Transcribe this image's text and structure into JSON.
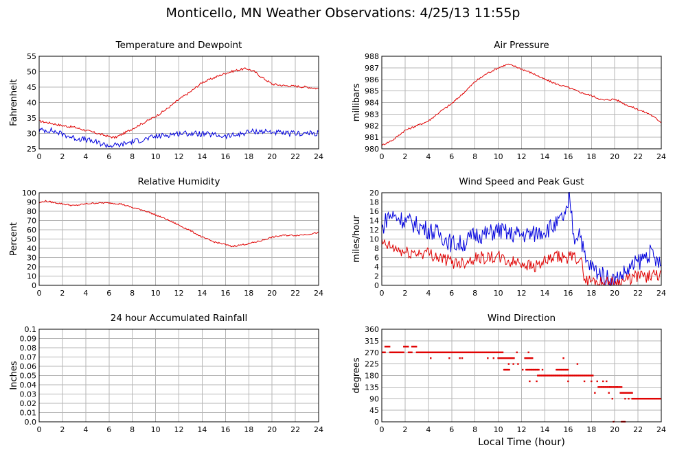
{
  "page": {
    "title": "Monticello, MN Weather Observations: 4/25/13 11:55p"
  },
  "colors": {
    "red": "#e00000",
    "blue": "#0000dd"
  },
  "chart_data": [
    {
      "id": "temp",
      "type": "line",
      "title": "Temperature and Dewpoint",
      "xlabel": "",
      "ylabel": "Fahrenheit",
      "xlim": [
        0,
        24
      ],
      "ylim": [
        25,
        55
      ],
      "xticks": [
        0,
        2,
        4,
        6,
        8,
        10,
        12,
        14,
        16,
        18,
        20,
        22,
        24
      ],
      "yticks": [
        25,
        30,
        35,
        40,
        45,
        50,
        55
      ],
      "series": [
        {
          "color": "red",
          "x": [
            0,
            1,
            2,
            3,
            4,
            5,
            6,
            6.5,
            7,
            8,
            9,
            10,
            11,
            12,
            13,
            14,
            15,
            16,
            17,
            17.8,
            18.5,
            19,
            20,
            21,
            22,
            23,
            24
          ],
          "y": [
            34,
            33.3,
            32.5,
            32,
            31,
            30,
            29,
            28.6,
            29.5,
            31.5,
            33.5,
            35.5,
            38,
            41,
            43.5,
            46.5,
            48,
            49.5,
            50.5,
            51,
            50,
            48.5,
            46,
            45.5,
            45.3,
            45,
            44.5
          ],
          "noise": 0.35
        },
        {
          "color": "blue",
          "x": [
            0,
            1,
            2,
            3,
            4,
            5,
            6,
            7,
            8,
            9,
            10,
            11,
            12,
            13,
            14,
            15,
            16,
            17,
            18,
            19,
            20,
            21,
            22,
            23,
            24
          ],
          "y": [
            31,
            31,
            29.8,
            28.5,
            28,
            27,
            26,
            26.3,
            27.4,
            28,
            29,
            29.5,
            30,
            30,
            29.8,
            29.5,
            29,
            29.5,
            30.5,
            30.7,
            30.5,
            29.9,
            30,
            30,
            30
          ],
          "noise": 0.9
        }
      ]
    },
    {
      "id": "press",
      "type": "line",
      "title": "Air Pressure",
      "xlabel": "",
      "ylabel": "millibars",
      "xlim": [
        0,
        24
      ],
      "ylim": [
        980,
        988
      ],
      "xticks": [
        0,
        2,
        4,
        6,
        8,
        10,
        12,
        14,
        16,
        18,
        20,
        22,
        24
      ],
      "yticks": [
        980,
        981,
        982,
        983,
        984,
        985,
        986,
        987,
        988
      ],
      "series": [
        {
          "color": "red",
          "x": [
            0,
            1,
            2,
            3,
            4,
            5,
            6,
            7,
            8,
            9,
            10,
            10.8,
            11.5,
            12,
            13,
            14,
            15,
            16,
            17,
            18,
            19,
            20,
            21,
            22,
            23,
            24
          ],
          "y": [
            980.3,
            980.8,
            981.6,
            982,
            982.4,
            983.2,
            983.9,
            984.8,
            985.8,
            986.5,
            987,
            987.3,
            987.1,
            986.9,
            986.5,
            986,
            985.6,
            985.3,
            984.9,
            984.6,
            984.2,
            984.3,
            983.8,
            983.4,
            983,
            982.3
          ],
          "noise": 0.08
        }
      ]
    },
    {
      "id": "rh",
      "type": "line",
      "title": "Relative Humidity",
      "xlabel": "",
      "ylabel": "Percent",
      "xlim": [
        0,
        24
      ],
      "ylim": [
        0,
        100
      ],
      "xticks": [
        0,
        2,
        4,
        6,
        8,
        10,
        12,
        14,
        16,
        18,
        20,
        22,
        24
      ],
      "yticks": [
        0,
        10,
        20,
        30,
        40,
        50,
        60,
        70,
        80,
        90,
        100
      ],
      "series": [
        {
          "color": "red",
          "x": [
            0,
            0.5,
            1,
            2,
            3,
            4,
            5,
            6,
            7,
            8,
            9,
            10,
            11,
            12,
            13,
            14,
            15,
            16,
            16.5,
            17,
            18,
            19,
            20,
            21,
            22,
            23,
            24
          ],
          "y": [
            89,
            91,
            90,
            88,
            86,
            88,
            89,
            89,
            88,
            84,
            81,
            76,
            71,
            65,
            59,
            52,
            47,
            44,
            42,
            43,
            45,
            48,
            52,
            54,
            54,
            55,
            57
          ],
          "noise": 0.8
        }
      ]
    },
    {
      "id": "wind",
      "type": "line",
      "title": "Wind Speed and Peak Gust",
      "xlabel": "",
      "ylabel": "miles/hour",
      "xlim": [
        0,
        24
      ],
      "ylim": [
        0,
        20
      ],
      "xticks": [
        0,
        2,
        4,
        6,
        8,
        10,
        12,
        14,
        16,
        18,
        20,
        22,
        24
      ],
      "yticks": [
        0,
        2,
        4,
        6,
        8,
        10,
        12,
        14,
        16,
        18,
        20
      ],
      "series": [
        {
          "color": "blue",
          "x": [
            0,
            0.5,
            1,
            2,
            3,
            4,
            5,
            6,
            7,
            8,
            9,
            10,
            11,
            12,
            13,
            14,
            15,
            16,
            16.1,
            16.5,
            17,
            17.5,
            18,
            19,
            20,
            21,
            22,
            23,
            24
          ],
          "y": [
            12,
            15,
            15,
            14,
            13,
            12,
            11,
            9,
            9,
            11,
            11,
            12,
            11,
            11,
            11,
            12,
            13,
            16,
            20,
            10,
            12,
            5,
            4,
            2,
            1,
            3,
            5,
            7,
            4
          ],
          "noise": 2.0
        },
        {
          "color": "red",
          "x": [
            0,
            1,
            2,
            3,
            4,
            5,
            6,
            7,
            8,
            9,
            10,
            11,
            12,
            13,
            14,
            15,
            16,
            17,
            17.5,
            18,
            19,
            20,
            21,
            22,
            23,
            24
          ],
          "y": [
            9,
            8,
            7,
            7,
            7,
            6,
            5,
            5,
            6,
            6,
            6,
            5,
            5,
            4,
            5,
            6,
            6,
            6,
            1,
            1,
            0.5,
            0.5,
            1,
            2,
            2,
            2
          ],
          "noise": 1.4
        }
      ]
    },
    {
      "id": "rain",
      "type": "line",
      "title": "24 hour Accumulated Rainfall",
      "xlabel": "",
      "ylabel": "Inches",
      "xlim": [
        0,
        24
      ],
      "ylim": [
        0,
        0.1
      ],
      "xticks": [
        0,
        2,
        4,
        6,
        8,
        10,
        12,
        14,
        16,
        18,
        20,
        22,
        24
      ],
      "yticks": [
        "0.0",
        "0.01",
        "0.02",
        "0.03",
        "0.04",
        "0.05",
        "0.06",
        "0.07",
        "0.08",
        "0.09",
        "0.1"
      ],
      "series": [
        {
          "color": "red",
          "x": [
            0,
            24
          ],
          "y": [
            0,
            0
          ],
          "noise": 0
        }
      ]
    },
    {
      "id": "dir",
      "type": "scatter",
      "title": "Wind Direction",
      "xlabel": "Local Time (hour)",
      "ylabel": "degrees",
      "xlim": [
        0,
        24
      ],
      "ylim": [
        0,
        360
      ],
      "xticks": [
        0,
        2,
        4,
        6,
        8,
        10,
        12,
        14,
        16,
        18,
        20,
        22,
        24
      ],
      "yticks": [
        0,
        45,
        90,
        135,
        180,
        225,
        270,
        315,
        360
      ],
      "segments": [
        {
          "x0": 0.0,
          "x1": 0.3,
          "y": 270
        },
        {
          "x0": 0.3,
          "x1": 0.7,
          "y": 292.5
        },
        {
          "x0": 0.7,
          "x1": 1.9,
          "y": 270
        },
        {
          "x0": 1.9,
          "x1": 2.3,
          "y": 292.5
        },
        {
          "x0": 2.3,
          "x1": 2.6,
          "y": 270
        },
        {
          "x0": 2.6,
          "x1": 3.0,
          "y": 292.5
        },
        {
          "x0": 3.0,
          "x1": 10.4,
          "y": 270
        },
        {
          "x0": 10.0,
          "x1": 11.4,
          "y": 247.5
        },
        {
          "x0": 10.5,
          "x1": 11.0,
          "y": 202.5
        },
        {
          "x0": 12.3,
          "x1": 13.0,
          "y": 247.5
        },
        {
          "x0": 12.4,
          "x1": 13.5,
          "y": 202.5
        },
        {
          "x0": 13.4,
          "x1": 15.5,
          "y": 180
        },
        {
          "x0": 15.0,
          "x1": 16.0,
          "y": 202.5
        },
        {
          "x0": 15.6,
          "x1": 18.2,
          "y": 180
        },
        {
          "x0": 18.6,
          "x1": 19.6,
          "y": 135
        },
        {
          "x0": 19.6,
          "x1": 20.6,
          "y": 135
        },
        {
          "x0": 20.6,
          "x1": 21.5,
          "y": 112.5
        },
        {
          "x0": 21.5,
          "x1": 24.0,
          "y": 90
        },
        {
          "x0": 20.6,
          "x1": 20.9,
          "y": 0
        }
      ],
      "points": [
        {
          "x": 4.2,
          "y": 247.5
        },
        {
          "x": 5.8,
          "y": 247.5
        },
        {
          "x": 6.7,
          "y": 247.5
        },
        {
          "x": 6.9,
          "y": 247.5
        },
        {
          "x": 9.1,
          "y": 247.5
        },
        {
          "x": 9.6,
          "y": 247.5
        },
        {
          "x": 10.9,
          "y": 225
        },
        {
          "x": 11.3,
          "y": 225
        },
        {
          "x": 11.6,
          "y": 270
        },
        {
          "x": 11.7,
          "y": 225
        },
        {
          "x": 12.1,
          "y": 202.5
        },
        {
          "x": 12.6,
          "y": 270
        },
        {
          "x": 12.7,
          "y": 157.5
        },
        {
          "x": 13.3,
          "y": 157.5
        },
        {
          "x": 13.8,
          "y": 202.5
        },
        {
          "x": 15.6,
          "y": 247.5
        },
        {
          "x": 16.0,
          "y": 157.5
        },
        {
          "x": 16.8,
          "y": 225
        },
        {
          "x": 17.4,
          "y": 157.5
        },
        {
          "x": 18.0,
          "y": 157.5
        },
        {
          "x": 18.3,
          "y": 112.5
        },
        {
          "x": 18.5,
          "y": 157.5
        },
        {
          "x": 19.0,
          "y": 157.5
        },
        {
          "x": 19.3,
          "y": 157.5
        },
        {
          "x": 19.5,
          "y": 112.5
        },
        {
          "x": 19.8,
          "y": 90
        },
        {
          "x": 19.9,
          "y": 0
        },
        {
          "x": 20.2,
          "y": 135
        },
        {
          "x": 20.5,
          "y": 112.5
        },
        {
          "x": 20.9,
          "y": 90
        },
        {
          "x": 21.2,
          "y": 90
        },
        {
          "x": 21.4,
          "y": 112.5
        }
      ]
    }
  ]
}
